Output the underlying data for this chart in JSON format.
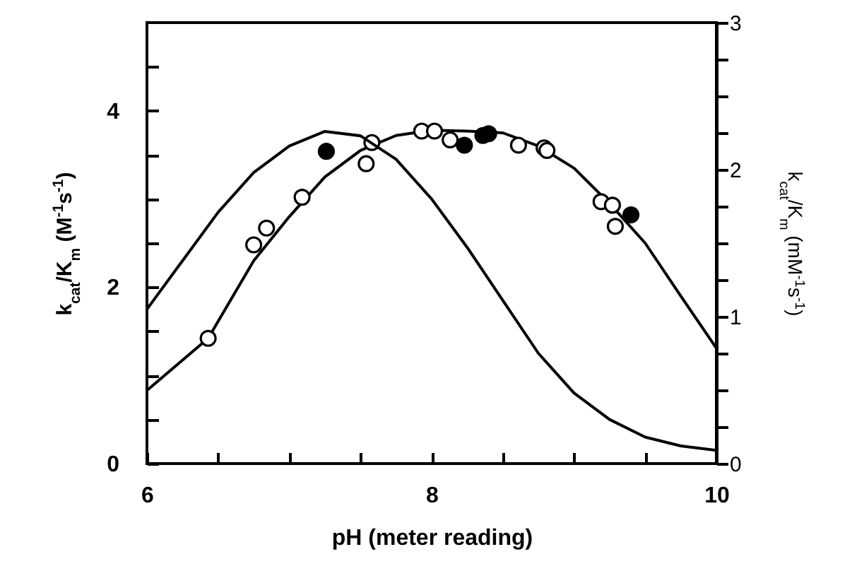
{
  "chart_data": {
    "type": "scatter",
    "xlabel": "pH (meter reading)",
    "ylabel": "k$_{cat}$/K$_{m}$ (M$^{-1}$s$^{-1}$)",
    "y2label": "k$_{cat}$/K$_{m}$ (mM$^{-1}$s$^{-1}$)",
    "xlim": [
      6,
      10
    ],
    "xticks": [
      6,
      {
        "value": 6.5,
        "label": null
      },
      {
        "value": 7,
        "label": null
      },
      {
        "value": 7.5,
        "label": null
      },
      8,
      {
        "value": 8.5,
        "label": null
      },
      {
        "value": 9,
        "label": null
      },
      {
        "value": 9.5,
        "label": null
      },
      10
    ],
    "ylim": [
      0,
      5
    ],
    "yticks": [
      0,
      {
        "value": 0.5,
        "label": null
      },
      {
        "value": 1,
        "label": null
      },
      {
        "value": 1.5,
        "label": null
      },
      2,
      {
        "value": 2.5,
        "label": null
      },
      {
        "value": 3,
        "label": null
      },
      {
        "value": 3.5,
        "label": null
      },
      4,
      {
        "value": 4.5,
        "label": null
      }
    ],
    "y2lim": [
      0,
      3
    ],
    "y2ticks": [
      0,
      {
        "value": 0.25,
        "label": null
      },
      {
        "value": 0.5,
        "label": null
      },
      {
        "value": 0.75,
        "label": null
      },
      1,
      {
        "value": 1.25,
        "label": null
      },
      {
        "value": 1.5,
        "label": null
      },
      {
        "value": 1.75,
        "label": null
      },
      2,
      {
        "value": 2.25,
        "label": null
      },
      {
        "value": 2.5,
        "label": null
      },
      {
        "value": 2.75,
        "label": null
      },
      3
    ],
    "grid": false,
    "series": [
      {
        "type": "line",
        "color": "#000000",
        "marker": "none",
        "x": [
          6,
          6.43,
          6.75,
          7,
          7.25,
          7.5,
          7.75,
          8,
          8.25,
          8.5,
          8.75,
          9,
          9.25,
          9.5,
          9.75,
          10
        ],
        "values": [
          0.83,
          1.42,
          2.3,
          2.8,
          3.25,
          3.55,
          3.72,
          3.78,
          3.77,
          3.75,
          3.6,
          3.35,
          2.95,
          2.5,
          1.9,
          1.31
        ]
      },
      {
        "type": "line",
        "axis": "y2",
        "color": "#000000",
        "marker": "none",
        "x": [
          6,
          6.25,
          6.5,
          6.75,
          7,
          7.25,
          7.5,
          7.75,
          8,
          8.25,
          8.5,
          8.75,
          9,
          9.25,
          9.5,
          9.75,
          10
        ],
        "values": [
          1.05,
          1.38,
          1.71,
          1.98,
          2.16,
          2.26,
          2.23,
          2.07,
          1.8,
          1.47,
          1.11,
          0.75,
          0.48,
          0.3,
          0.18,
          0.12,
          0.09
        ]
      },
      {
        "color": "#ffffff",
        "marker": "circle",
        "x": [
          6.43,
          6.75,
          6.84,
          7.09,
          7.54,
          7.58,
          7.93,
          8.02,
          8.13,
          8.61,
          8.79,
          8.81,
          9.19,
          9.27,
          9.29
        ],
        "values": [
          1.42,
          2.48,
          2.67,
          3.02,
          3.4,
          3.64,
          3.77,
          3.77,
          3.67,
          3.61,
          3.58,
          3.55,
          2.97,
          2.93,
          2.69
        ]
      },
      {
        "color": "#000000",
        "marker": "circle",
        "x": [
          7.26,
          8.23,
          8.36,
          8.4,
          9.4
        ],
        "values": [
          3.54,
          3.61,
          3.72,
          3.74,
          2.82
        ]
      }
    ]
  }
}
